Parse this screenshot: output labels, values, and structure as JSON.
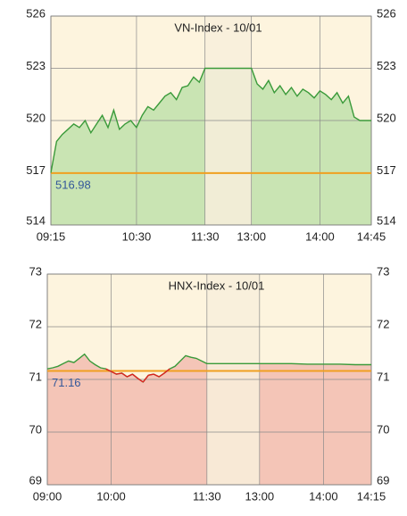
{
  "chart_data": [
    {
      "type": "line",
      "title": "VN-Index - 10/01",
      "x": [
        "09:15",
        "09:20",
        "09:25",
        "09:30",
        "09:35",
        "09:40",
        "09:45",
        "09:50",
        "09:55",
        "10:00",
        "10:05",
        "10:10",
        "10:15",
        "10:20",
        "10:25",
        "10:30",
        "10:35",
        "10:40",
        "10:45",
        "10:50",
        "10:55",
        "11:00",
        "11:05",
        "11:10",
        "11:15",
        "11:20",
        "11:25",
        "11:30",
        "13:00",
        "13:05",
        "13:10",
        "13:15",
        "13:20",
        "13:25",
        "13:30",
        "13:35",
        "13:40",
        "13:45",
        "13:50",
        "13:55",
        "14:00",
        "14:05",
        "14:10",
        "14:15",
        "14:20",
        "14:25",
        "14:30",
        "14:35",
        "14:40",
        "14:45"
      ],
      "values": [
        517.0,
        518.8,
        519.2,
        519.5,
        519.8,
        519.6,
        520.0,
        519.3,
        519.8,
        520.3,
        519.6,
        520.6,
        519.5,
        519.8,
        520.0,
        519.6,
        520.3,
        520.8,
        520.6,
        521.0,
        521.4,
        521.6,
        521.2,
        521.9,
        522.0,
        522.5,
        522.2,
        523.0,
        523.0,
        522.1,
        521.8,
        522.3,
        521.6,
        522.0,
        521.5,
        521.9,
        521.4,
        521.8,
        521.6,
        521.3,
        521.7,
        521.5,
        521.2,
        521.6,
        521.0,
        521.4,
        520.2,
        520.0,
        520.0,
        520.0
      ],
      "color": "#3a9a3a",
      "fill_color": "#c9e4b3",
      "ref": 516.98,
      "ref_color": "#f0a020",
      "break": [
        "11:30",
        "13:00"
      ],
      "xlim": [
        "09:15",
        "14:45"
      ],
      "xticks": [
        "09:15",
        "10:30",
        "11:30",
        "13:00",
        "14:00",
        "14:45"
      ],
      "ylim": [
        514,
        526
      ],
      "yticks": [
        514,
        517,
        520,
        523,
        526
      ],
      "grid": true
    },
    {
      "type": "line",
      "title": "HNX-Index - 10/01",
      "x": [
        "09:00",
        "09:05",
        "09:10",
        "09:15",
        "09:20",
        "09:25",
        "09:30",
        "09:35",
        "09:40",
        "09:45",
        "09:50",
        "09:55",
        "10:00",
        "10:05",
        "10:10",
        "10:15",
        "10:20",
        "10:25",
        "10:30",
        "10:35",
        "10:40",
        "10:45",
        "10:50",
        "10:55",
        "11:00",
        "11:05",
        "11:10",
        "11:15",
        "11:20",
        "11:25",
        "11:30",
        "13:00",
        "13:15",
        "13:30",
        "13:45",
        "14:00",
        "14:15",
        "14:30",
        "14:45"
      ],
      "values": [
        71.2,
        71.22,
        71.25,
        71.3,
        71.35,
        71.32,
        71.4,
        71.48,
        71.35,
        71.28,
        71.22,
        71.2,
        71.15,
        71.1,
        71.12,
        71.05,
        71.1,
        71.02,
        70.95,
        71.08,
        71.1,
        71.05,
        71.12,
        71.2,
        71.25,
        71.35,
        71.45,
        71.42,
        71.4,
        71.35,
        71.3,
        71.3,
        71.3,
        71.3,
        71.29,
        71.29,
        71.29,
        71.28,
        71.28
      ],
      "color": "#3a9a3a",
      "down_color": "#e02020",
      "fill_color": "#f4c5b7",
      "ref": 71.16,
      "ref_color": "#f0a020",
      "break": [
        "11:30",
        "13:00"
      ],
      "xlim": [
        "09:00",
        "14:45"
      ],
      "xticks": [
        "09:00",
        "10:00",
        "11:30",
        "13:00",
        "14:00",
        {
          "value": "14:45",
          "label": "14:15"
        }
      ],
      "ylim": [
        69,
        73
      ],
      "yticks": [
        69,
        70,
        71,
        72,
        73
      ],
      "grid": true
    }
  ]
}
